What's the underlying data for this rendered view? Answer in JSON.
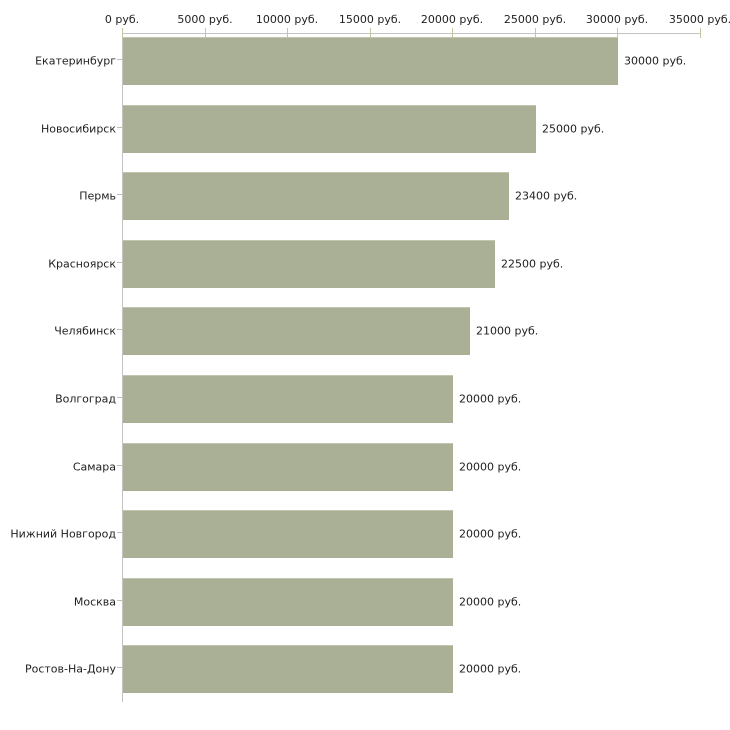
{
  "chart_data": {
    "type": "bar",
    "orientation": "horizontal",
    "title": "",
    "xlabel": "",
    "ylabel": "",
    "categories": [
      "Екатеринбург",
      "Новосибирск",
      "Пермь",
      "Красноярск",
      "Челябинск",
      "Волгоград",
      "Самара",
      "Нижний Новгород",
      "Москва",
      "Ростов-На-Дону"
    ],
    "values": [
      30000,
      25000,
      23400,
      22500,
      21000,
      20000,
      20000,
      20000,
      20000,
      20000
    ],
    "value_labels": [
      "30000 руб.",
      "25000 руб.",
      "23400 руб.",
      "22500 руб.",
      "21000 руб.",
      "20000 руб.",
      "20000 руб.",
      "20000 руб.",
      "20000 руб.",
      "20000 руб."
    ],
    "x_axis": {
      "position": "top",
      "min": 0,
      "max": 35000,
      "tick_step": 5000,
      "tick_values": [
        0,
        5000,
        10000,
        15000,
        20000,
        25000,
        30000,
        35000
      ],
      "tick_labels": [
        "0 руб.",
        "5000 руб.",
        "10000 руб.",
        "15000 руб.",
        "20000 руб.",
        "25000 руб.",
        "30000 руб.",
        "35000 руб."
      ]
    },
    "grid": false,
    "legend": false,
    "colors": {
      "bar_fill": "#aab095",
      "bar_edge_highlight": "#c2c6ae",
      "axis_line": "#c3c3c3",
      "x_tick_mark": "#c5c7a3",
      "y_tick_mark": "#bfc1a5",
      "text": "#1f1f1f",
      "background": "#ffffff"
    }
  }
}
